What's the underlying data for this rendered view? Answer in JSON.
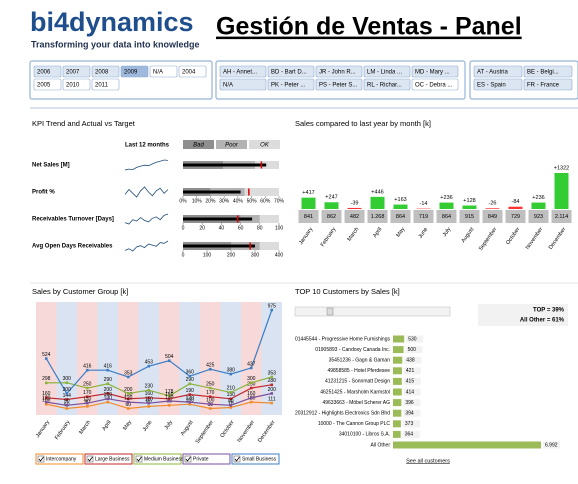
{
  "header": {
    "logo": "bi4dynamics",
    "tagline": "Transforming your data into knowledge",
    "title": "Gestión de Ventas - Panel"
  },
  "slicers": [
    {
      "columns": 6,
      "width": 27,
      "items": [
        {
          "label": "2006",
          "state": "normal"
        },
        {
          "label": "2007",
          "state": "normal"
        },
        {
          "label": "2008",
          "state": "normal"
        },
        {
          "label": "2009",
          "state": "selected"
        },
        {
          "label": "N/A",
          "state": "empty"
        },
        {
          "label": "2004",
          "state": "empty"
        },
        {
          "label": "2005",
          "state": "empty"
        },
        {
          "label": "2010",
          "state": "empty"
        },
        {
          "label": "2011",
          "state": "empty"
        }
      ]
    },
    {
      "columns": 5,
      "width": 46,
      "items": [
        {
          "label": "AH - Annet...",
          "state": "normal"
        },
        {
          "label": "BD - Bart D...",
          "state": "normal"
        },
        {
          "label": "JR - John R...",
          "state": "normal"
        },
        {
          "label": "LM - Linda ...",
          "state": "normal"
        },
        {
          "label": "MD - Mary ...",
          "state": "normal"
        },
        {
          "label": "N/A",
          "state": "normal"
        },
        {
          "label": "PK - Peter ...",
          "state": "normal"
        },
        {
          "label": "PS - Peter S...",
          "state": "normal"
        },
        {
          "label": "RL - Richar...",
          "state": "normal"
        },
        {
          "label": "OC - Debra ...",
          "state": "empty"
        }
      ]
    },
    {
      "columns": 2,
      "width": 48,
      "items": [
        {
          "label": "AT - Austria",
          "state": "normal"
        },
        {
          "label": "BE - Belgi...",
          "state": "normal"
        },
        {
          "label": "ES - Spain",
          "state": "normal"
        },
        {
          "label": "FR - France",
          "state": "normal"
        }
      ]
    }
  ],
  "chart_data": [
    {
      "type": "bullet",
      "title": "KPI Trend and Actual vs Target",
      "trend_label": "Last 12 months",
      "range_labels": [
        "Bad",
        "Poor",
        "OK"
      ],
      "range_colors": [
        "#8f8f8f",
        "#b3b3b3",
        "#dcdcdc"
      ],
      "actual_color": "#000000",
      "target_color": "#e00000",
      "spark_color": "#1f4e79",
      "rows": [
        {
          "name": "Net Sales [M]",
          "trend": [
            5,
            5.2,
            5.1,
            5.6,
            5.9,
            6.1,
            6.0,
            6.4,
            6.8,
            7.0,
            7.3,
            7.2
          ],
          "xlim": [
            0,
            12
          ],
          "ranges": [
            5,
            9
          ],
          "actual": 10.4,
          "target": 9.8
        },
        {
          "name": "Profit %",
          "trend": [
            30,
            34,
            31,
            28,
            33,
            36,
            32,
            29,
            33,
            35,
            31,
            34
          ],
          "xlim": [
            0,
            70
          ],
          "ranges": [
            20,
            45
          ],
          "actual": 42,
          "target": 48,
          "xticks": [
            {
              "value": 0,
              "label": "0%"
            },
            {
              "value": 10,
              "label": "10%"
            },
            {
              "value": 20,
              "label": "20%"
            },
            {
              "value": 30,
              "label": "30%"
            },
            {
              "value": 40,
              "label": "40%"
            },
            {
              "value": 50,
              "label": "50%"
            },
            {
              "value": 60,
              "label": "60%"
            },
            {
              "value": 70,
              "label": "70%"
            }
          ]
        },
        {
          "name": "Receivables Turnover [Days]",
          "trend": [
            60,
            58,
            64,
            62,
            67,
            63,
            61,
            66,
            68,
            64,
            70,
            72
          ],
          "xlim": [
            0,
            100
          ],
          "ranges": [
            60,
            80
          ],
          "actual": 72,
          "target": 57,
          "xticks": [
            0,
            20,
            40,
            60,
            80,
            100
          ]
        },
        {
          "name": "Avg Open Days Receivables",
          "trend": [
            240,
            250,
            236,
            262,
            270,
            258,
            280,
            274,
            266,
            290,
            285,
            300
          ],
          "xlim": [
            0,
            400
          ],
          "ranges": [
            200,
            320
          ],
          "actual": 300,
          "target": 280,
          "xticks": [
            0,
            100,
            200,
            300,
            400
          ]
        }
      ]
    },
    {
      "type": "bar",
      "orientation": "vertical",
      "title": "Sales compared to last year by month [k]",
      "categories": [
        "January",
        "February",
        "March",
        "April",
        "May",
        "June",
        "July",
        "August",
        "September",
        "October",
        "November",
        "December"
      ],
      "values": [
        841,
        862,
        482,
        1268,
        864,
        719,
        864,
        915,
        849,
        729,
        923,
        2114
      ],
      "value_labels": [
        "841",
        "862",
        "482",
        "1.268",
        "864",
        "719",
        "864",
        "915",
        "849",
        "729",
        "923",
        "2.114"
      ],
      "change": [
        417,
        247,
        -39,
        446,
        163,
        -14,
        236,
        128,
        -26,
        -84,
        236,
        1322
      ],
      "change_labels": [
        "+417",
        "+247",
        "-39",
        "+446",
        "+163",
        "-14",
        "+236",
        "+128",
        "-26",
        "-84",
        "+236",
        "+1322"
      ],
      "positive_color": "#33cc33",
      "negative_color": "#ff3333",
      "box_color": "#bfbfbf"
    },
    {
      "type": "line",
      "title": "Sales by Customer Group [k]",
      "categories": [
        "January",
        "February",
        "March",
        "April",
        "May",
        "June",
        "July",
        "August",
        "September",
        "October",
        "November",
        "December"
      ],
      "stripe_colors": [
        "#f7d9d9",
        "#d9e3f2"
      ],
      "series": [
        {
          "name": "Intercompany",
          "color": "#f08c2c",
          "values": [
            100,
            60,
            80,
            120,
            60,
            80,
            90,
            100,
            60,
            70,
            120,
            111
          ]
        },
        {
          "name": "Large Business",
          "color": "#c0282d",
          "values": [
            160,
            144,
            170,
            200,
            150,
            160,
            150,
            190,
            170,
            150,
            250,
            280
          ]
        },
        {
          "name": "Medium Business",
          "color": "#8cb43c",
          "values": [
            298,
            300,
            250,
            290,
            200,
            230,
            178,
            290,
            250,
            210,
            300,
            353
          ]
        },
        {
          "name": "Private",
          "color": "#7a4f9c",
          "values": [
            120,
            90,
            110,
            150,
            120,
            110,
            130,
            120,
            100,
            90,
            160,
            200
          ]
        },
        {
          "name": "Small Business",
          "color": "#3c7dc4",
          "values": [
            524,
            200,
            416,
            416,
            353,
            453,
            504,
            360,
            425,
            380,
            437,
            975
          ]
        }
      ]
    },
    {
      "type": "bar",
      "orientation": "horizontal",
      "title": "TOP 10 Customers by Sales [k]",
      "color": "#9bbb59",
      "summary": [
        "TOP = 39%",
        "All Other = 61%"
      ],
      "link": "See all customers",
      "categories": [
        "01445544 - Progressive Home Furnishings",
        "01905893 - Candoxy Canada Inc.",
        "35451236 - Gagn & Gaman",
        "49858585 - Hotel Pferdesee",
        "41231215 - Sonnmatt Design",
        "46251425 - Marsholm Karmstol",
        "49633663 - Möbel Scherer AG",
        "20312912 - Highlights Electronics Sdn Bhd",
        "10000 - The Cannon Group PLC",
        "34010100 - Libros S.A.",
        "All Other"
      ],
      "values": [
        530,
        500,
        438,
        421,
        415,
        414,
        396,
        394,
        373,
        364,
        6992
      ],
      "value_labels": [
        "530",
        "500",
        "438",
        "421",
        "415",
        "414",
        "396",
        "394",
        "373",
        "364",
        "6.992"
      ]
    }
  ]
}
